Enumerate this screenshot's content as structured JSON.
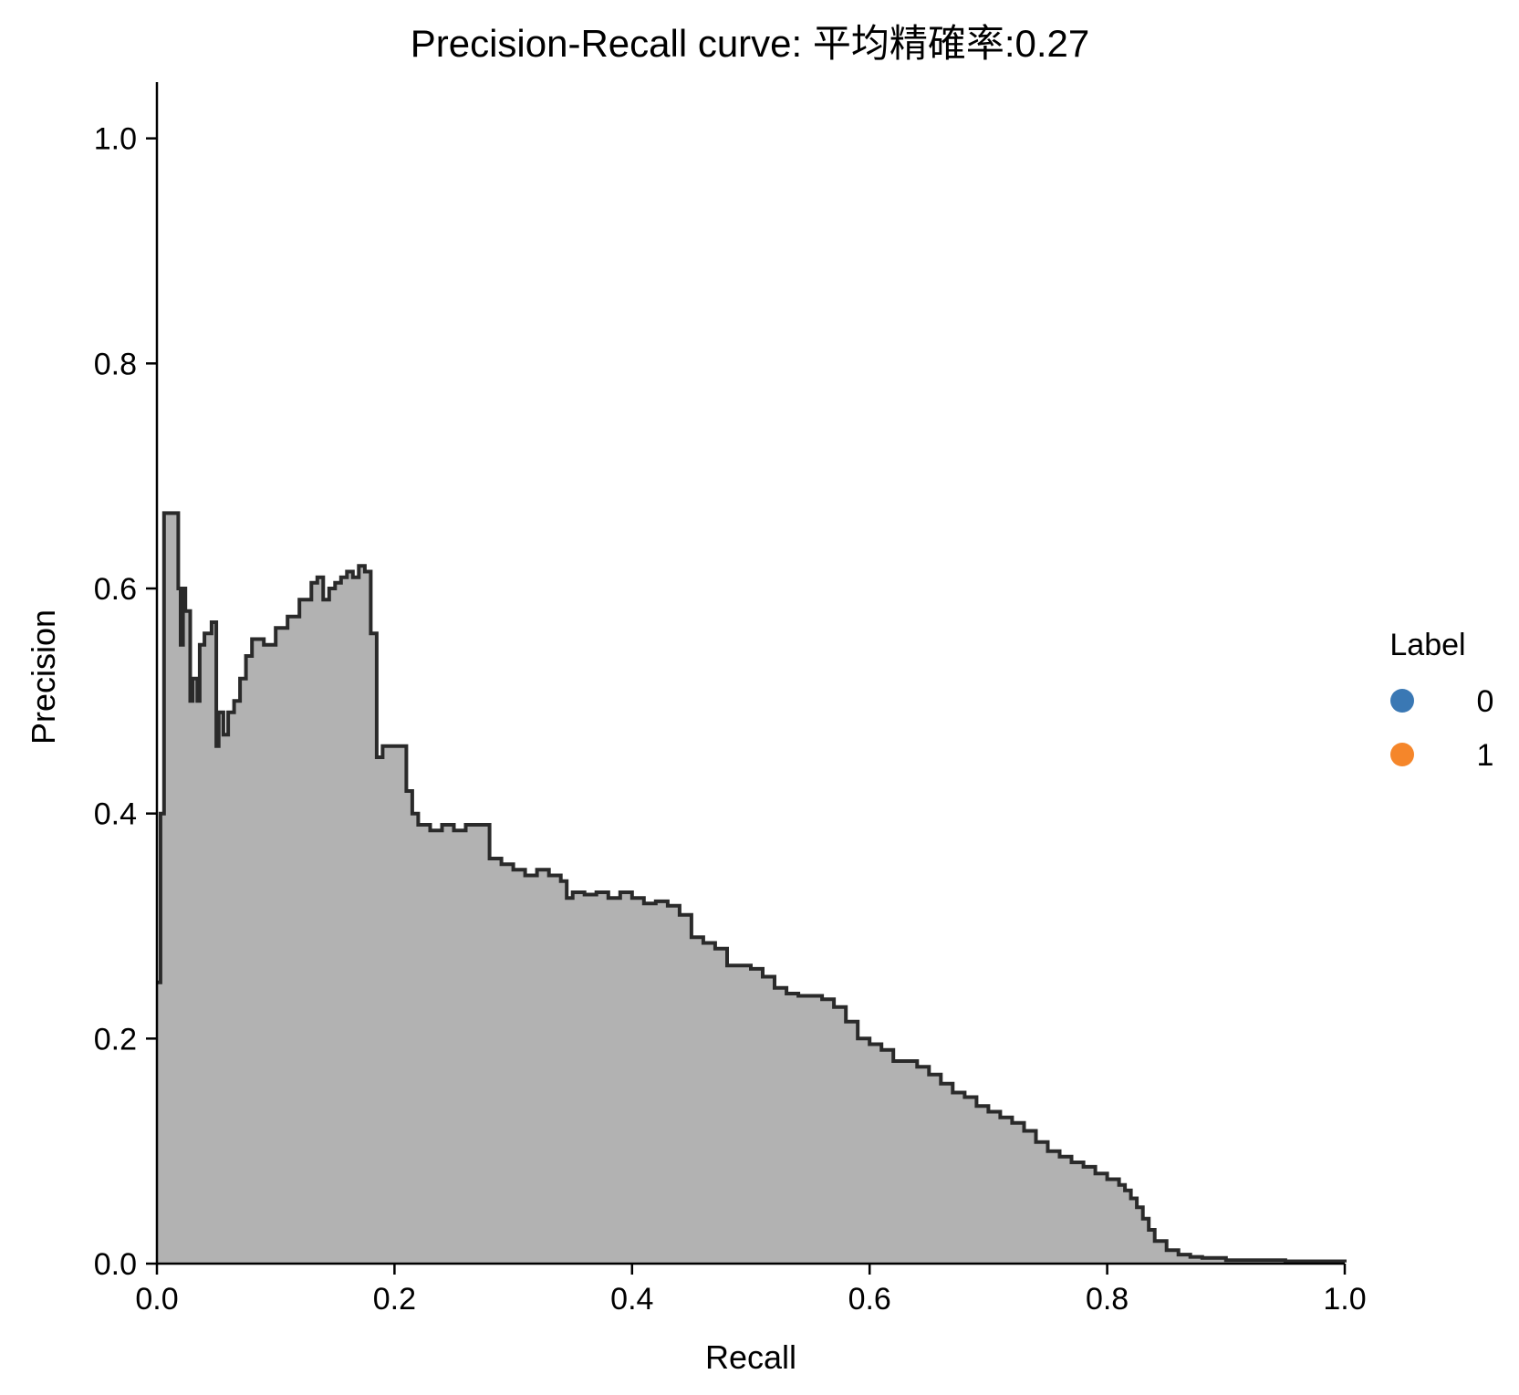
{
  "chart_data": {
    "type": "area",
    "title": "Precision-Recall curve: 平均精確率:0.27",
    "xlabel": "Recall",
    "ylabel": "Precision",
    "xlim": [
      0.0,
      1.0
    ],
    "ylim": [
      0.0,
      1.05
    ],
    "xticks": [
      "0.0",
      "0.2",
      "0.4",
      "0.6",
      "0.8",
      "1.0"
    ],
    "yticks": [
      "0.0",
      "0.2",
      "0.4",
      "0.6",
      "0.8",
      "1.0"
    ],
    "grid": false,
    "legend": {
      "title": "Label",
      "placement": "right",
      "entries": [
        {
          "label": "0",
          "color": "#3a78b4"
        },
        {
          "label": "1",
          "color": "#f5862a"
        }
      ]
    },
    "fill_color": "#b2b2b2",
    "line_color": "#2a2a2a",
    "curve": {
      "recall": [
        0.0,
        0.003,
        0.005,
        0.006,
        0.012,
        0.018,
        0.02,
        0.022,
        0.024,
        0.028,
        0.03,
        0.034,
        0.036,
        0.04,
        0.046,
        0.05,
        0.052,
        0.056,
        0.06,
        0.065,
        0.07,
        0.075,
        0.08,
        0.09,
        0.1,
        0.11,
        0.12,
        0.13,
        0.135,
        0.14,
        0.145,
        0.15,
        0.155,
        0.16,
        0.165,
        0.17,
        0.175,
        0.18,
        0.185,
        0.19,
        0.2,
        0.21,
        0.215,
        0.22,
        0.23,
        0.24,
        0.25,
        0.26,
        0.27,
        0.28,
        0.29,
        0.3,
        0.31,
        0.32,
        0.33,
        0.34,
        0.345,
        0.35,
        0.36,
        0.37,
        0.38,
        0.39,
        0.4,
        0.41,
        0.42,
        0.43,
        0.44,
        0.45,
        0.46,
        0.47,
        0.48,
        0.49,
        0.5,
        0.51,
        0.52,
        0.53,
        0.54,
        0.55,
        0.56,
        0.57,
        0.58,
        0.59,
        0.6,
        0.61,
        0.62,
        0.63,
        0.64,
        0.65,
        0.66,
        0.67,
        0.68,
        0.69,
        0.7,
        0.71,
        0.72,
        0.73,
        0.74,
        0.75,
        0.76,
        0.77,
        0.78,
        0.79,
        0.8,
        0.81,
        0.815,
        0.82,
        0.825,
        0.83,
        0.835,
        0.84,
        0.85,
        0.86,
        0.87,
        0.88,
        0.9,
        0.95,
        1.0
      ],
      "precision": [
        0.25,
        0.4,
        0.4,
        0.667,
        0.667,
        0.6,
        0.55,
        0.6,
        0.58,
        0.5,
        0.52,
        0.5,
        0.55,
        0.56,
        0.57,
        0.46,
        0.49,
        0.47,
        0.49,
        0.5,
        0.52,
        0.54,
        0.555,
        0.55,
        0.565,
        0.575,
        0.59,
        0.605,
        0.61,
        0.59,
        0.6,
        0.605,
        0.61,
        0.615,
        0.61,
        0.62,
        0.615,
        0.56,
        0.45,
        0.46,
        0.46,
        0.42,
        0.4,
        0.39,
        0.385,
        0.39,
        0.385,
        0.39,
        0.39,
        0.36,
        0.355,
        0.35,
        0.345,
        0.35,
        0.345,
        0.34,
        0.325,
        0.33,
        0.328,
        0.33,
        0.325,
        0.33,
        0.325,
        0.32,
        0.322,
        0.318,
        0.31,
        0.29,
        0.285,
        0.28,
        0.265,
        0.265,
        0.262,
        0.255,
        0.245,
        0.24,
        0.238,
        0.238,
        0.235,
        0.228,
        0.215,
        0.2,
        0.195,
        0.19,
        0.18,
        0.18,
        0.175,
        0.168,
        0.16,
        0.152,
        0.148,
        0.14,
        0.135,
        0.13,
        0.125,
        0.118,
        0.108,
        0.1,
        0.095,
        0.09,
        0.086,
        0.08,
        0.075,
        0.07,
        0.065,
        0.058,
        0.05,
        0.04,
        0.03,
        0.02,
        0.012,
        0.008,
        0.006,
        0.005,
        0.003,
        0.002,
        0.001
      ]
    }
  }
}
